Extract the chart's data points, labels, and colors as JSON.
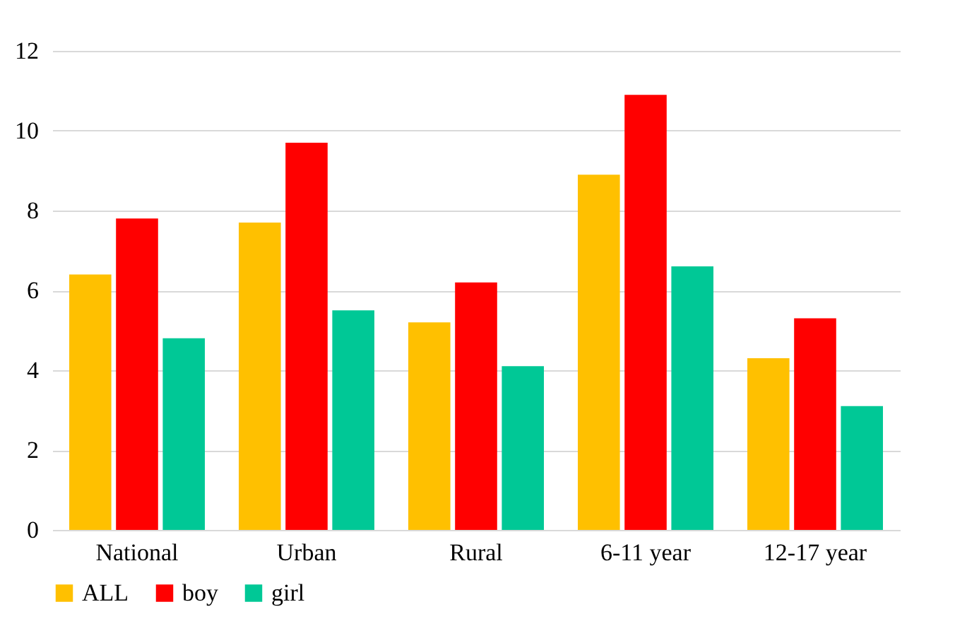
{
  "chart_data": {
    "type": "bar",
    "categories": [
      "National",
      "Urban",
      "Rural",
      "6-11 year",
      "12-17 year"
    ],
    "series": [
      {
        "name": "ALL",
        "color": "#ffc000",
        "values": [
          6.4,
          7.7,
          5.2,
          8.9,
          4.3
        ]
      },
      {
        "name": "boy",
        "color": "#ff0000",
        "values": [
          7.8,
          9.7,
          6.2,
          10.9,
          5.3
        ]
      },
      {
        "name": "girl",
        "color": "#00c896",
        "values": [
          4.8,
          5.5,
          4.1,
          6.6,
          3.1
        ]
      }
    ],
    "ylim": [
      0,
      12
    ],
    "yticks": [
      0,
      2,
      4,
      6,
      8,
      10,
      12
    ],
    "grid": "y",
    "legend": "bottom"
  }
}
